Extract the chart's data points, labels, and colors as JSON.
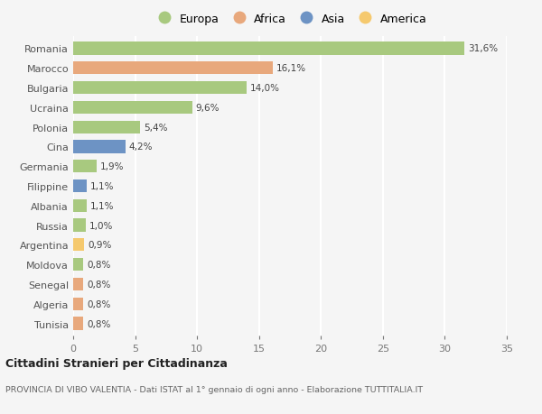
{
  "countries": [
    "Romania",
    "Marocco",
    "Bulgaria",
    "Ucraina",
    "Polonia",
    "Cina",
    "Germania",
    "Filippine",
    "Albania",
    "Russia",
    "Argentina",
    "Moldova",
    "Senegal",
    "Algeria",
    "Tunisia"
  ],
  "values": [
    31.6,
    16.1,
    14.0,
    9.6,
    5.4,
    4.2,
    1.9,
    1.1,
    1.1,
    1.0,
    0.9,
    0.8,
    0.8,
    0.8,
    0.8
  ],
  "labels": [
    "31,6%",
    "16,1%",
    "14,0%",
    "9,6%",
    "5,4%",
    "4,2%",
    "1,9%",
    "1,1%",
    "1,1%",
    "1,0%",
    "0,9%",
    "0,8%",
    "0,8%",
    "0,8%",
    "0,8%"
  ],
  "colors": [
    "#a8c97f",
    "#e8a87c",
    "#a8c97f",
    "#a8c97f",
    "#a8c97f",
    "#6d93c4",
    "#a8c97f",
    "#6d93c4",
    "#a8c97f",
    "#a8c97f",
    "#f5c96e",
    "#a8c97f",
    "#e8a87c",
    "#e8a87c",
    "#e8a87c"
  ],
  "legend": [
    {
      "label": "Europa",
      "color": "#a8c97f"
    },
    {
      "label": "Africa",
      "color": "#e8a87c"
    },
    {
      "label": "Asia",
      "color": "#6d93c4"
    },
    {
      "label": "America",
      "color": "#f5c96e"
    }
  ],
  "xlim": [
    0,
    35
  ],
  "xticks": [
    0,
    5,
    10,
    15,
    20,
    25,
    30,
    35
  ],
  "title": "Cittadini Stranieri per Cittadinanza",
  "subtitle": "PROVINCIA DI VIBO VALENTIA - Dati ISTAT al 1° gennaio di ogni anno - Elaborazione TUTTITALIA.IT",
  "bg_color": "#f5f5f5",
  "grid_color": "#ffffff",
  "bar_height": 0.65
}
